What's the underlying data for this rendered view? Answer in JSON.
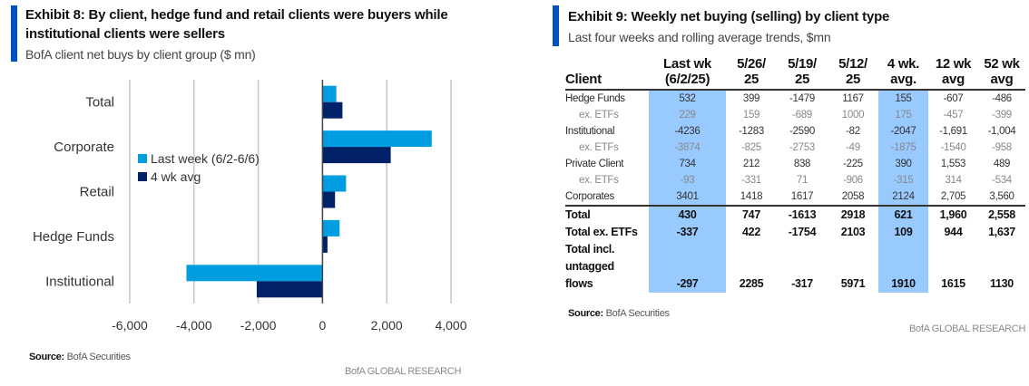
{
  "exhibit8": {
    "title_line1": "Exhibit 8: By client, hedge fund and retail clients were buyers while",
    "title_line2": "institutional clients were sellers",
    "subtitle": "BofA client net buys by client group ($ mn)",
    "source_label": "Source:",
    "source_text": " BofA Securities",
    "brand": "BofA GLOBAL RESEARCH"
  },
  "exhibit9": {
    "title": "Exhibit 9: Weekly net buying (selling) by client type",
    "subtitle": "Last four weeks and rolling average trends, $mn",
    "source_label": "Source:",
    "source_text": " BofA Securities",
    "brand": "BofA GLOBAL RESEARCH",
    "columns": [
      {
        "line1": "",
        "line2": "Client"
      },
      {
        "line1": "Last wk",
        "line2": "(6/2/25)"
      },
      {
        "line1": "5/26/",
        "line2": "25"
      },
      {
        "line1": "5/19/",
        "line2": "25"
      },
      {
        "line1": "5/12/",
        "line2": "25"
      },
      {
        "line1": "4 wk.",
        "line2": "avg."
      },
      {
        "line1": "12 wk",
        "line2": "avg"
      },
      {
        "line1": "52 wk",
        "line2": "avg"
      }
    ],
    "rows": [
      {
        "label": "Hedge Funds",
        "type": "main",
        "values": [
          "532",
          "399",
          "-1479",
          "1167",
          "155",
          "-607",
          "-486"
        ]
      },
      {
        "label": "ex. ETFs",
        "type": "sub",
        "values": [
          "229",
          "159",
          "-689",
          "1000",
          "175",
          "-457",
          "-399"
        ]
      },
      {
        "label": "Institutional",
        "type": "main",
        "values": [
          "-4236",
          "-1283",
          "-2590",
          "-82",
          "-2047",
          "-1,691",
          "-1,004"
        ]
      },
      {
        "label": "ex. ETFs",
        "type": "sub",
        "values": [
          "-3874",
          "-825",
          "-2753",
          "-49",
          "-1875",
          "-1540",
          "-958"
        ]
      },
      {
        "label": "Private Client",
        "type": "main",
        "values": [
          "734",
          "212",
          "838",
          "-225",
          "390",
          "1,553",
          "489"
        ]
      },
      {
        "label": "ex. ETFs",
        "type": "sub",
        "values": [
          "-93",
          "-331",
          "71",
          "-906",
          "-315",
          "314",
          "-534"
        ]
      },
      {
        "label": "Corporates",
        "type": "main",
        "values": [
          "3401",
          "1418",
          "1617",
          "2058",
          "2124",
          "2,705",
          "3,560"
        ]
      },
      {
        "label": "Total",
        "type": "total",
        "values": [
          "430",
          "747",
          "-1613",
          "2918",
          "621",
          "1,960",
          "2,558"
        ]
      },
      {
        "label": "Total ex. ETFs",
        "type": "total",
        "values": [
          "-337",
          "422",
          "-1754",
          "2103",
          "109",
          "944",
          "1,637"
        ]
      },
      {
        "label": "Total incl. untagged flows",
        "label_lines": [
          "Total incl.",
          "untagged",
          "flows"
        ],
        "type": "total-multi",
        "values": [
          "-297",
          "2285",
          "-317",
          "5971",
          "1910",
          "1615",
          "1130"
        ]
      }
    ]
  },
  "chart_data": {
    "type": "bar",
    "orientation": "horizontal",
    "title": "Exhibit 8: By client, hedge fund and retail clients were buyers while institutional clients were sellers",
    "subtitle": "BofA client net buys by client group ($ mn)",
    "categories": [
      "Total",
      "Corporate",
      "Retail",
      "Hedge Funds",
      "Institutional"
    ],
    "series": [
      {
        "name": "Last week (6/2-6/6)",
        "color": "#009ee0",
        "values": [
          430,
          3401,
          734,
          532,
          -4236
        ]
      },
      {
        "name": "4 wk avg",
        "color": "#012169",
        "values": [
          621,
          2124,
          390,
          155,
          -2047
        ]
      }
    ],
    "xlim": [
      -6000,
      4000
    ],
    "xticks": [
      -6000,
      -4000,
      -2000,
      0,
      2000,
      4000
    ],
    "xtick_labels": [
      "-6,000",
      "-4,000",
      "-2,000",
      "0",
      "2,000",
      "4,000"
    ],
    "xlabel": "",
    "ylabel": "",
    "grid": true,
    "legend_position": "center-left"
  }
}
